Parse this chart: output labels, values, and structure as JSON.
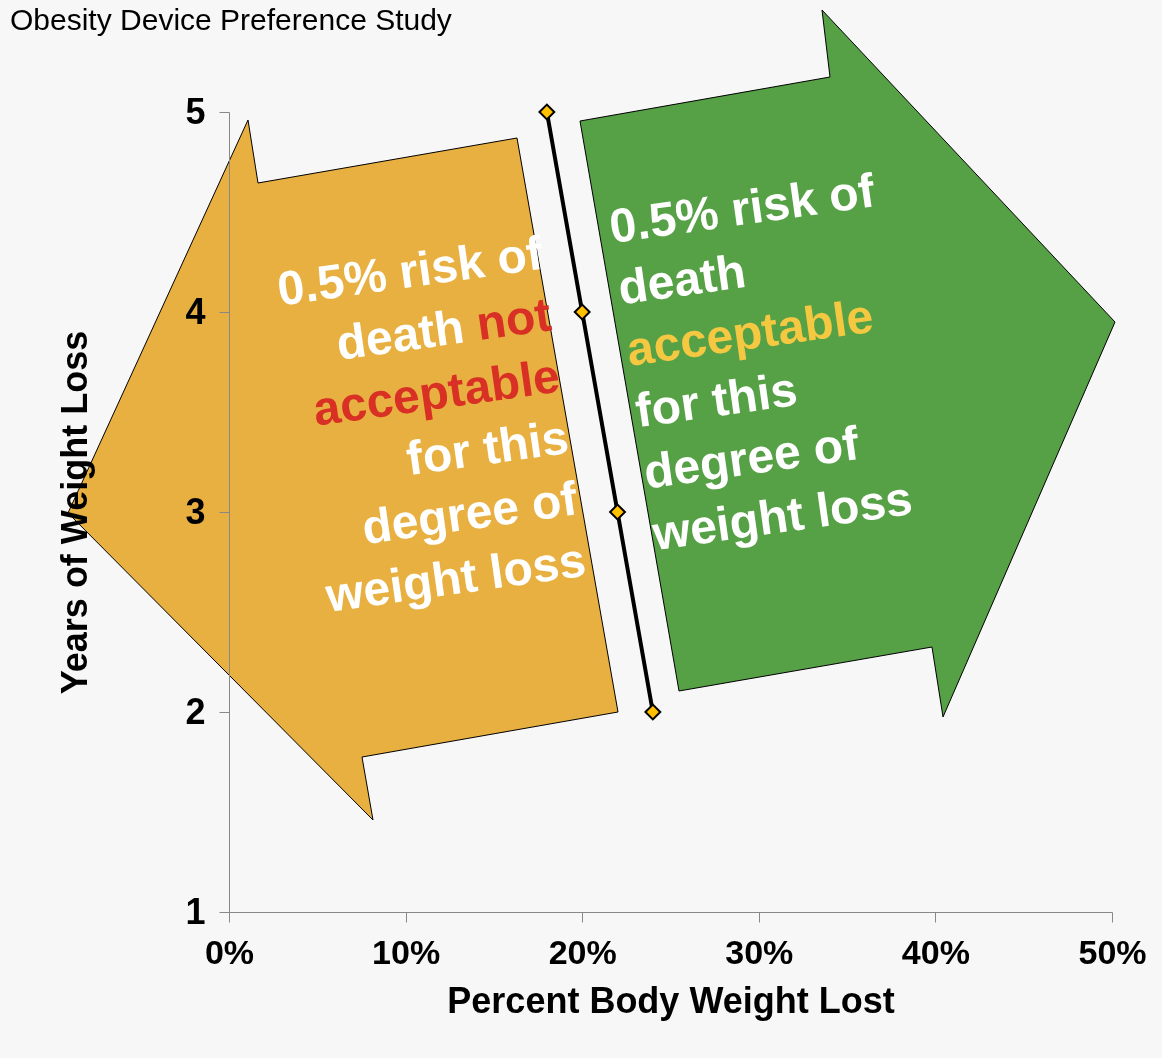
{
  "chart_data": {
    "type": "line",
    "title": "Obesity Device Preference Study",
    "xlabel": "Percent Body Weight Lost",
    "ylabel": "Years of Weight Loss",
    "x": [
      18,
      20,
      22,
      24
    ],
    "series": [
      {
        "color": "#000000",
        "values": [
          5,
          4,
          3,
          2
        ]
      }
    ],
    "xlim": [
      0,
      50
    ],
    "xticks": [
      {
        "value": 0,
        "label": "0%"
      },
      {
        "value": 10,
        "label": "10%"
      },
      {
        "value": 20,
        "label": "20%"
      },
      {
        "value": 30,
        "label": "30%"
      },
      {
        "value": 40,
        "label": "40%"
      },
      {
        "value": 50,
        "label": "50%"
      }
    ],
    "ylim": [
      1,
      5
    ],
    "yticks": [
      1,
      2,
      3,
      4,
      5
    ],
    "marker": "diamond",
    "grid": false,
    "legend": false,
    "annotations": [
      "0.5% risk of death",
      "not acceptable",
      "for this degree of weight loss",
      "0.5% risk of death",
      "acceptable",
      "for this degree of weight loss"
    ]
  }
}
